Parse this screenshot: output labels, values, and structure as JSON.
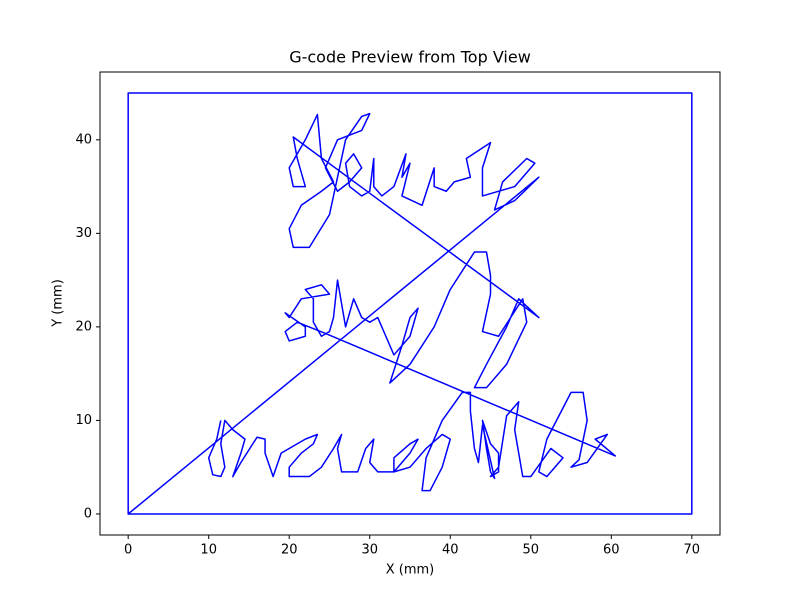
{
  "chart_data": {
    "type": "line",
    "title": "G-code Preview from Top View",
    "x_label": "X (mm)",
    "y_label": "Y (mm)",
    "xlim": [
      -3.5,
      73.5
    ],
    "ylim": [
      -2.25,
      47.25
    ],
    "xticks": [
      0,
      10,
      20,
      30,
      40,
      50,
      60,
      70
    ],
    "yticks": [
      0,
      10,
      20,
      30,
      40
    ],
    "grid": false,
    "x": [
      0,
      0,
      70,
      70,
      0,
      51,
      48,
      45.5,
      46.5,
      49.5,
      50.5,
      48,
      44,
      44,
      45,
      42,
      42.5,
      40.5,
      39.5,
      38,
      38,
      36.5,
      34,
      35,
      34,
      34.5,
      33,
      31.5,
      30.5,
      30.5,
      30,
      29,
      27.5,
      27,
      28,
      29,
      27.5,
      26,
      24.5,
      26,
      29,
      30,
      29,
      27,
      25,
      22.5,
      20.5,
      20,
      21.5,
      24,
      25.5,
      24,
      23.5,
      22,
      20,
      20.5,
      22,
      21,
      20.5,
      51,
      48.5,
      47,
      44.5,
      43,
      44.5,
      47,
      49.5,
      49,
      46,
      44,
      45,
      45,
      44.5,
      43,
      40,
      38,
      35,
      32.5,
      34,
      35,
      36,
      35,
      33,
      32,
      31,
      30,
      29,
      28,
      27,
      26,
      25.5,
      25,
      24,
      23,
      23,
      22,
      24,
      25,
      21.5,
      20,
      19.5,
      22,
      22,
      20,
      19.5,
      21,
      24.5,
      60.5,
      58,
      59.5,
      57,
      55,
      56,
      57,
      56.5,
      55,
      52,
      51,
      52,
      54,
      52.5,
      50,
      49,
      48,
      48.5,
      47,
      46,
      45,
      46,
      46,
      45,
      44,
      44.5,
      45,
      45.5,
      44,
      43.5,
      43,
      42.5,
      42.5,
      41.5,
      39,
      37,
      36.5,
      37.5,
      39,
      40,
      39,
      37,
      35,
      33,
      33,
      35,
      36,
      35,
      33,
      31,
      30,
      30.5,
      29.5,
      28.5,
      27.5,
      26.5,
      26,
      26.5,
      25.5,
      24,
      22.5,
      20,
      20,
      21.5,
      23,
      23.5,
      22,
      19,
      18,
      17,
      17,
      16,
      14,
      13,
      14,
      14.5,
      13,
      12,
      11.5,
      12,
      11.5,
      10.5,
      10,
      11,
      11.5
    ],
    "series": [
      {
        "color": "#0000ff",
        "values": [
          0,
          45,
          45,
          0,
          0,
          36,
          33.5,
          32.5,
          35.5,
          38,
          37.5,
          35,
          34,
          37,
          39.7,
          38,
          36,
          35.5,
          34.5,
          35,
          37,
          33,
          34,
          37.5,
          36,
          38.5,
          35,
          34,
          35,
          38,
          34.5,
          34,
          35,
          37.5,
          38.5,
          37,
          35.5,
          34.5,
          37,
          40,
          41,
          42.8,
          42.5,
          40,
          32,
          28.5,
          28.5,
          30.5,
          33,
          34.5,
          35.5,
          38,
          42.7,
          40,
          37,
          35,
          35,
          38,
          40.3,
          21,
          23,
          20,
          16,
          13.5,
          13.5,
          16,
          20.5,
          23,
          19,
          19.5,
          23.5,
          25.5,
          28,
          28,
          24,
          20,
          16,
          14,
          18,
          21,
          22,
          19,
          17,
          19,
          21,
          20.5,
          21,
          23,
          20,
          25,
          21,
          19.5,
          19,
          20.5,
          23,
          24,
          24.5,
          23.5,
          23,
          21,
          21.5,
          20,
          19,
          18.5,
          19.5,
          20.5,
          19.3,
          6.2,
          8,
          8.5,
          5.5,
          5,
          5.8,
          10,
          13,
          13,
          8,
          4.5,
          4,
          6,
          7,
          4,
          4,
          9,
          12,
          10.5,
          5,
          4,
          4.5,
          6.5,
          7.5,
          10,
          7,
          4.5,
          3.8,
          9.5,
          5.5,
          7,
          11,
          13,
          13,
          10,
          6,
          2.5,
          2.5,
          5,
          8,
          8.5,
          7,
          5,
          4.5,
          6,
          7.5,
          8,
          6.5,
          4.5,
          4.5,
          5.5,
          8,
          7,
          4.5,
          4.5,
          4.5,
          7,
          8.5,
          7,
          5,
          4,
          4,
          5,
          6.5,
          7.5,
          8.5,
          8,
          6.5,
          4,
          6.5,
          8,
          8.2,
          5.5,
          4,
          6.5,
          8,
          9,
          10,
          7.5,
          5,
          4,
          4.2,
          6,
          8,
          10
        ]
      }
    ]
  }
}
